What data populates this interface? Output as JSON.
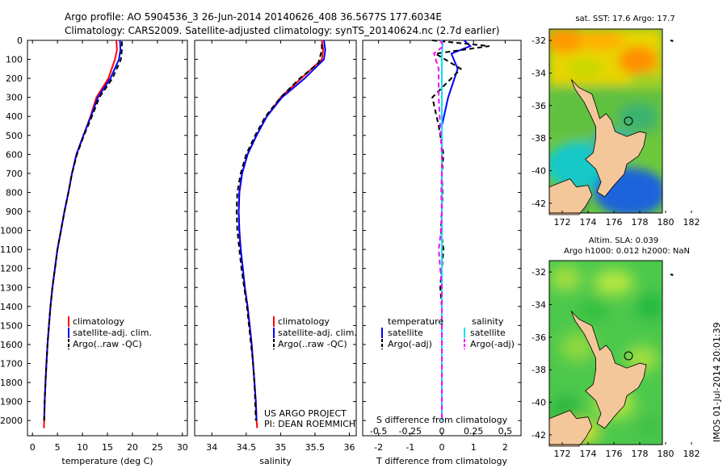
{
  "header": {
    "line1": "Argo profile: AO 5904536_3 26-Jun-2014 20140626_408 36.5677S 177.6034E",
    "line2": "Climatology: CARS2009. Satellite-adjusted climatology: synTS_20140624.nc (2.7d earlier)"
  },
  "colors": {
    "climatology": "#ff0000",
    "satellite": "#0000ff",
    "argo": "#000000",
    "satellite_sal": "#00e5ee",
    "argo_sal": "#ff00ff",
    "land": "#f4c79a"
  },
  "chart_data": [
    {
      "id": "temperature",
      "type": "line",
      "xlabel": "temperature (deg C)",
      "ylabel": "depth",
      "xlim": [
        -1,
        31
      ],
      "ylim": [
        2080,
        0
      ],
      "xticks": [
        "0",
        "5",
        "10",
        "15",
        "20",
        "25",
        "30"
      ],
      "yticks": [
        "0",
        "100",
        "200",
        "300",
        "400",
        "500",
        "600",
        "700",
        "800",
        "900",
        "1000",
        "1100",
        "1200",
        "1300",
        "1400",
        "1500",
        "1600",
        "1700",
        "1800",
        "1900",
        "2000"
      ],
      "series": [
        {
          "name": "climatology",
          "color": "#ff0000",
          "dash": "",
          "x": [
            16.8,
            16.9,
            16.5,
            15.2,
            12.8,
            11.6,
            10.2,
            8.8,
            7.9,
            7.2,
            6.4,
            5.7,
            5.0,
            4.5,
            4.0,
            3.6,
            3.3,
            3.0,
            2.8,
            2.6,
            2.45,
            2.35,
            2.3
          ],
          "y": [
            0,
            50,
            100,
            200,
            300,
            400,
            500,
            600,
            700,
            800,
            900,
            1000,
            1100,
            1200,
            1300,
            1400,
            1500,
            1600,
            1700,
            1800,
            1900,
            2000,
            2040
          ]
        },
        {
          "name": "satellite-adj. clim.",
          "color": "#0000ff",
          "dash": "",
          "x": [
            17.5,
            17.6,
            17.3,
            15.6,
            13.1,
            11.7,
            10.2,
            8.8,
            7.9,
            7.2,
            6.4,
            5.7,
            5.0,
            4.5,
            4.0,
            3.6,
            3.3,
            3.0,
            2.8,
            2.6,
            2.45,
            2.35
          ],
          "y": [
            0,
            50,
            100,
            200,
            300,
            400,
            500,
            600,
            700,
            800,
            900,
            1000,
            1100,
            1200,
            1300,
            1400,
            1500,
            1600,
            1700,
            1800,
            1900,
            2000
          ]
        },
        {
          "name": "Argo(..raw -QC)",
          "color": "#000000",
          "dash": "6,4",
          "x": [
            17.9,
            17.9,
            17.7,
            16.0,
            13.4,
            11.9,
            10.3,
            8.9,
            7.9,
            7.2,
            6.4,
            5.7,
            5.0,
            4.5,
            4.0,
            3.6,
            3.3,
            3.0,
            2.8,
            2.6,
            2.45,
            2.35
          ],
          "y": [
            5,
            50,
            100,
            200,
            300,
            400,
            500,
            600,
            700,
            800,
            900,
            1000,
            1100,
            1200,
            1300,
            1400,
            1500,
            1600,
            1700,
            1800,
            1900,
            2000
          ]
        }
      ],
      "legend": [
        "climatology",
        "satellite-adj. clim.",
        "Argo(..raw -QC)"
      ]
    },
    {
      "id": "salinity",
      "type": "line",
      "xlabel": "salinity",
      "ylabel": "depth",
      "xlim": [
        33.75,
        36.1
      ],
      "ylim": [
        2080,
        0
      ],
      "xticks": [
        "34",
        "34.5",
        "35",
        "35.5",
        "36"
      ],
      "series": [
        {
          "name": "climatology",
          "color": "#ff0000",
          "dash": "",
          "x": [
            35.6,
            35.62,
            35.6,
            35.3,
            35.0,
            34.8,
            34.65,
            34.52,
            34.44,
            34.4,
            34.39,
            34.4,
            34.42,
            34.45,
            34.48,
            34.52,
            34.55,
            34.58,
            34.6,
            34.62,
            34.64,
            34.65,
            34.66
          ],
          "y": [
            0,
            50,
            100,
            200,
            300,
            400,
            500,
            600,
            700,
            800,
            900,
            1000,
            1100,
            1200,
            1300,
            1400,
            1500,
            1600,
            1700,
            1800,
            1900,
            2000,
            2040
          ]
        },
        {
          "name": "satellite-adj. clim.",
          "color": "#0000ff",
          "dash": "",
          "x": [
            35.63,
            35.65,
            35.63,
            35.35,
            35.02,
            34.8,
            34.65,
            34.52,
            34.44,
            34.4,
            34.39,
            34.4,
            34.42,
            34.45,
            34.48,
            34.52,
            34.55,
            34.58,
            34.6,
            34.62,
            34.64,
            34.65
          ],
          "y": [
            0,
            50,
            100,
            200,
            300,
            400,
            500,
            600,
            700,
            800,
            900,
            1000,
            1100,
            1200,
            1300,
            1400,
            1500,
            1600,
            1700,
            1800,
            1900,
            2000
          ]
        },
        {
          "name": "Argo(..raw -QC)",
          "color": "#000000",
          "dash": "6,4",
          "x": [
            35.6,
            35.6,
            35.55,
            35.28,
            35.0,
            34.78,
            34.63,
            34.5,
            34.42,
            34.37,
            34.36,
            34.37,
            34.4,
            34.43,
            34.47,
            34.51,
            34.54,
            34.57,
            34.6,
            34.62,
            34.63,
            34.64
          ],
          "y": [
            20,
            50,
            120,
            200,
            300,
            400,
            500,
            600,
            700,
            800,
            900,
            1000,
            1100,
            1200,
            1300,
            1400,
            1500,
            1600,
            1700,
            1800,
            1900,
            2000
          ]
        }
      ],
      "legend": [
        "climatology",
        "satellite-adj. clim.",
        "Argo(..raw -QC)"
      ],
      "annotation": [
        "US ARGO PROJECT",
        "PI: DEAN ROEMMICH"
      ]
    },
    {
      "id": "difference",
      "type": "line",
      "xlabel": "T difference from climatology",
      "xlabel_top": "S difference from climatology",
      "xlim": [
        -2.5,
        2.5
      ],
      "ylim": [
        2080,
        0
      ],
      "xticks": [
        "-2",
        "-1",
        "0",
        "1",
        "2"
      ],
      "xticks_s": [
        "-0.5",
        "-0.25",
        "0",
        "0.25",
        "0.5"
      ],
      "series": [
        {
          "name": "temperature satellite",
          "color": "#0000ff",
          "dash": "",
          "x": [
            0.7,
            0.9,
            0.3,
            0.5,
            0.2,
            0.0,
            0.0,
            0.0,
            0.0,
            0.0,
            0.0,
            0.0,
            0.0,
            0.0,
            0.0,
            0.0,
            0.0,
            0.0,
            0.0,
            0.0
          ],
          "y": [
            0,
            30,
            70,
            150,
            300,
            450,
            600,
            700,
            800,
            900,
            1000,
            1100,
            1200,
            1300,
            1400,
            1500,
            1600,
            1700,
            1800,
            2000
          ]
        },
        {
          "name": "temperature Argo(-adj)",
          "color": "#000000",
          "dash": "6,4",
          "x": [
            -0.3,
            1.5,
            -0.2,
            0.6,
            -0.3,
            -0.1,
            0.05,
            0.0,
            0.02,
            0.0,
            -0.03,
            0.05,
            0.0,
            -0.05,
            0.0,
            0.0,
            0.0,
            0.0,
            0.0,
            0.0
          ],
          "y": [
            0,
            30,
            70,
            150,
            300,
            450,
            600,
            700,
            800,
            900,
            1000,
            1100,
            1200,
            1300,
            1400,
            1500,
            1600,
            1700,
            1800,
            2000
          ]
        },
        {
          "name": "salinity satellite",
          "color": "#00e5ee",
          "dash": "",
          "x": [
            0.0,
            0.02,
            0.0,
            0.0,
            0.0,
            0.0,
            0.0,
            0.0,
            0.0,
            0.0,
            0.0,
            0.0,
            0.0,
            0.0,
            0.0,
            0.0,
            0.0,
            0.0,
            0.0,
            0.0
          ],
          "y": [
            0,
            30,
            70,
            150,
            300,
            450,
            600,
            700,
            800,
            900,
            1000,
            1100,
            1200,
            1300,
            1400,
            1500,
            1600,
            1700,
            1800,
            2000
          ]
        },
        {
          "name": "salinity Argo(-adj)",
          "color": "#ff00ff",
          "dash": "6,4",
          "x": [
            -0.05,
            0.05,
            -0.25,
            -0.1,
            -0.1,
            -0.05,
            0.0,
            0.0,
            -0.02,
            0.0,
            -0.02,
            -0.1,
            -0.05,
            0.0,
            0.0,
            0.0,
            0.0,
            0.0,
            0.0,
            0.0
          ],
          "y": [
            0,
            30,
            70,
            150,
            300,
            450,
            600,
            700,
            800,
            900,
            1000,
            1100,
            1200,
            1300,
            1400,
            1500,
            1600,
            1700,
            1800,
            2000
          ]
        }
      ],
      "legend": {
        "temperature_title": "temperature",
        "salinity_title": "salinity",
        "satellite": "satellite",
        "argo": "Argo(-adj)"
      }
    },
    {
      "id": "sst-map",
      "type": "heatmap",
      "title": "sat. SST: 17.6  Argo: 17.7",
      "xticks": [
        "172",
        "174",
        "176",
        "178",
        "180",
        "182"
      ],
      "yticks": [
        "-32",
        "-34",
        "-36",
        "-38",
        "-40",
        "-42"
      ],
      "float_position": {
        "lon": 177.6034,
        "lat": -36.5677
      }
    },
    {
      "id": "sla-map",
      "type": "heatmap",
      "title_line1": "Altim. SLA: 0.039",
      "title_line2": "Argo h1000: 0.012 h2000: NaN",
      "xticks": [
        "172",
        "174",
        "176",
        "178",
        "180",
        "182"
      ],
      "yticks": [
        "-32",
        "-34",
        "-36",
        "-38",
        "-40",
        "-42"
      ],
      "float_position": {
        "lon": 177.6034,
        "lat": -36.5677
      }
    }
  ],
  "footer": {
    "stamp": "IMOS 01-Jul-2014 20:01:39"
  }
}
